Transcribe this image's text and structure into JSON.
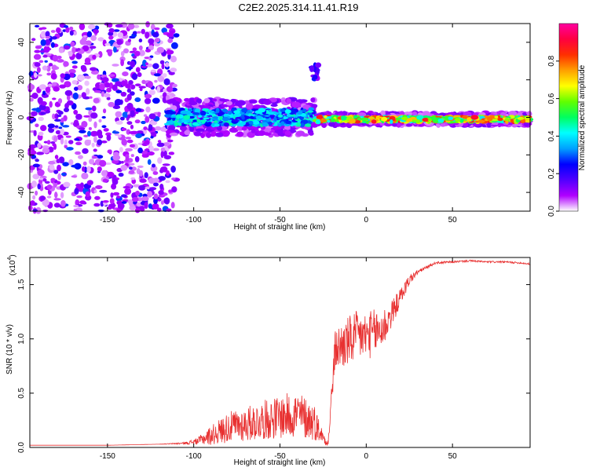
{
  "figure": {
    "title": "C2E2.2025.314.11.41.R19"
  },
  "chart_data": [
    {
      "type": "heatmap",
      "name": "spectrogram",
      "title": "C2E2.2025.314.11.41.R19",
      "xlabel": "Height of straight line (km)",
      "ylabel": "Frequency (Hz)",
      "xlim": [
        -195,
        95
      ],
      "ylim": [
        -50,
        50
      ],
      "xticks": [
        -150,
        -100,
        -50,
        0,
        50
      ],
      "yticks": [
        -40,
        -20,
        0,
        20,
        40
      ],
      "xtick_labels": [
        "-150",
        "-100",
        "-50",
        "0",
        "50"
      ],
      "ytick_labels": [
        "-40",
        "-20",
        "0",
        "20",
        "40"
      ],
      "colorbar": {
        "label": "Normalized spectral amplitude",
        "range": [
          0.0,
          1.0
        ],
        "ticks": [
          0.0,
          0.2,
          0.4,
          0.6,
          0.8
        ],
        "tick_labels": [
          "0.0",
          "0.2",
          "0.4",
          "0.6",
          "0.8"
        ],
        "colormap": [
          "#ffffff",
          "#b000ff",
          "#5000ff",
          "#0000ff",
          "#00a0ff",
          "#00ffff",
          "#00ff60",
          "#60ff00",
          "#ffff00",
          "#ffa000",
          "#ff3000",
          "#ff0040",
          "#ff00a0"
        ]
      },
      "features": [
        {
          "description": "scattered noise",
          "x_range": [
            -195,
            -110
          ],
          "f_range": [
            -50,
            50
          ],
          "amplitude": 0.2
        },
        {
          "description": "broad signal",
          "x_range": [
            -115,
            -30
          ],
          "f_center": 0,
          "f_halfwidth": 6,
          "amplitude": 0.45
        },
        {
          "description": "narrow signal",
          "x_range": [
            -30,
            95
          ],
          "f_center": -1,
          "f_halfwidth": 2,
          "amplitude": 0.85
        },
        {
          "description": "side feature",
          "x_range": [
            -32,
            -27
          ],
          "f_range": [
            20,
            28
          ],
          "amplitude": 0.25
        }
      ]
    },
    {
      "type": "line",
      "name": "snr",
      "xlabel": "Height of straight line (km)",
      "ylabel": "SNR (10 * v/v)",
      "scale_label": "(x10",
      "scale_exponent": "4",
      "xlim": [
        -195,
        95
      ],
      "ylim": [
        0.0,
        1.75
      ],
      "xticks": [
        -150,
        -100,
        -50,
        0,
        50
      ],
      "yticks": [
        0.0,
        0.5,
        1.0,
        1.5
      ],
      "xtick_labels": [
        "-150",
        "-100",
        "-50",
        "0",
        "50"
      ],
      "ytick_labels": [
        "0.0",
        "0.5",
        "1.0",
        "1.5"
      ],
      "color": "#e83030",
      "series": [
        {
          "name": "SNR",
          "x": [
            -195,
            -150,
            -120,
            -105,
            -98,
            -90,
            -80,
            -70,
            -60,
            -50,
            -40,
            -30,
            -25,
            -22,
            -20,
            -18,
            -15,
            -10,
            -5,
            0,
            5,
            10,
            15,
            20,
            25,
            30,
            35,
            40,
            50,
            60,
            70,
            80,
            90,
            95
          ],
          "values": [
            0.02,
            0.02,
            0.03,
            0.04,
            0.06,
            0.12,
            0.2,
            0.23,
            0.27,
            0.3,
            0.33,
            0.25,
            0.1,
            0.05,
            0.5,
            0.92,
            0.95,
            1.0,
            1.05,
            1.05,
            1.08,
            1.12,
            1.25,
            1.4,
            1.55,
            1.62,
            1.66,
            1.7,
            1.71,
            1.72,
            1.71,
            1.71,
            1.7,
            1.69
          ],
          "noise_amplitude": [
            0.0,
            0.0,
            0.0,
            0.01,
            0.03,
            0.09,
            0.14,
            0.16,
            0.18,
            0.2,
            0.22,
            0.17,
            0.05,
            0.05,
            0.12,
            0.18,
            0.22,
            0.24,
            0.24,
            0.22,
            0.22,
            0.2,
            0.12,
            0.08,
            0.05,
            0.02,
            0.015,
            0.01,
            0.01,
            0.008,
            0.008,
            0.008,
            0.008,
            0.008
          ]
        }
      ]
    }
  ]
}
